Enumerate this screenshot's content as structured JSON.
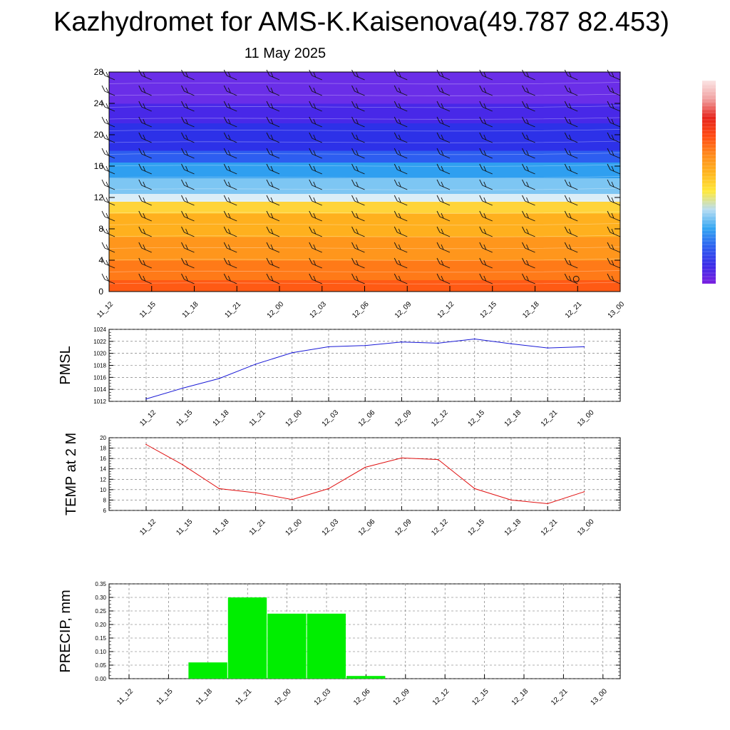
{
  "title": "Kazhydromet for AMS-K.Kaisenova(49.787 82.453)",
  "subtitle": "11 May 2025",
  "time_labels": [
    "11_12",
    "11_15",
    "11_18",
    "11_21",
    "12_00",
    "12_03",
    "12_06",
    "12_09",
    "12_12",
    "12_15",
    "12_18",
    "12_21",
    "13_00"
  ],
  "colorbar": {
    "colors": [
      "#7a1fe0",
      "#3a2ce8",
      "#2d60f0",
      "#33a6f2",
      "#b6dcf2",
      "#ffe93a",
      "#ffb51e",
      "#ff8a1c",
      "#ff4a12",
      "#e6241c",
      "#f0a0a0",
      "#fbe4e4"
    ]
  },
  "chart_data": [
    {
      "type": "heatmap",
      "title": "",
      "xlabel": "",
      "ylabel": "",
      "ylim": [
        0,
        28
      ],
      "yticks": [
        0,
        4,
        8,
        12,
        16,
        20,
        24,
        28
      ],
      "categories": [
        "11_12",
        "11_15",
        "11_18",
        "11_21",
        "12_00",
        "12_03",
        "12_06",
        "12_09",
        "12_12",
        "12_15",
        "12_18",
        "12_21",
        "13_00"
      ],
      "color_bands": [
        {
          "y_from": 0,
          "y_to": 1.5,
          "color": "#ff5a14"
        },
        {
          "y_from": 1.5,
          "y_to": 4,
          "color": "#ff7a18"
        },
        {
          "y_from": 4,
          "y_to": 7,
          "color": "#ff961c"
        },
        {
          "y_from": 7,
          "y_to": 10,
          "color": "#ffb01e"
        },
        {
          "y_from": 10,
          "y_to": 11.5,
          "color": "#ffd43a"
        },
        {
          "y_from": 11.5,
          "y_to": 12.5,
          "color": "#dbeef7"
        },
        {
          "y_from": 12.5,
          "y_to": 14.5,
          "color": "#7dc6f3"
        },
        {
          "y_from": 14.5,
          "y_to": 16.5,
          "color": "#2f9ff0"
        },
        {
          "y_from": 16.5,
          "y_to": 18,
          "color": "#2d5df0"
        },
        {
          "y_from": 18,
          "y_to": 21.5,
          "color": "#2d31e8"
        },
        {
          "y_from": 21.5,
          "y_to": 24,
          "color": "#4828e8"
        },
        {
          "y_from": 24,
          "y_to": 28,
          "color": "#6a2ee8"
        }
      ],
      "grid": false
    },
    {
      "type": "line",
      "title": "",
      "xlabel": "",
      "ylabel": "PMSL",
      "categories": [
        "11_12",
        "11_15",
        "11_18",
        "11_21",
        "12_00",
        "12_03",
        "12_06",
        "12_09",
        "12_12",
        "12_15",
        "12_18",
        "12_21",
        "13_00"
      ],
      "series": [
        {
          "values": [
            1012.4,
            1014.2,
            1015.8,
            1018.2,
            1020.1,
            1021.1,
            1021.3,
            1021.9,
            1021.7,
            1022.4,
            1021.6,
            1020.9,
            1021.1
          ],
          "color": "#1a1ad6"
        }
      ],
      "ylim": [
        1012,
        1024
      ],
      "yticks": [
        1012,
        1014,
        1016,
        1018,
        1020,
        1022,
        1024
      ],
      "grid": true
    },
    {
      "type": "line",
      "title": "",
      "xlabel": "",
      "ylabel": "TEMP at 2 M",
      "categories": [
        "11_12",
        "11_15",
        "11_18",
        "11_21",
        "12_00",
        "12_03",
        "12_06",
        "12_09",
        "12_12",
        "12_15",
        "12_18",
        "12_21",
        "13_00"
      ],
      "series": [
        {
          "values": [
            18.7,
            14.8,
            10.2,
            9.4,
            8.1,
            10.2,
            14.3,
            16.1,
            15.8,
            10.2,
            8.0,
            7.3,
            9.6
          ],
          "color": "#e01010"
        }
      ],
      "ylim": [
        6,
        20
      ],
      "yticks": [
        6,
        8,
        10,
        12,
        14,
        16,
        18,
        20
      ],
      "grid": true
    },
    {
      "type": "bar",
      "title": "",
      "xlabel": "",
      "ylabel": "PRECIP, mm",
      "categories": [
        "11_12",
        "11_15",
        "11_18",
        "11_21",
        "12_00",
        "12_03",
        "12_06",
        "12_09",
        "12_12",
        "12_15",
        "12_18",
        "12_21",
        "13_00"
      ],
      "values": [
        0,
        0,
        0.06,
        0.3,
        0.24,
        0.24,
        0.01,
        0,
        0,
        0,
        0,
        0,
        0
      ],
      "ylim": [
        0,
        0.35
      ],
      "yticks": [
        "0.00",
        "0.05",
        "0.10",
        "0.15",
        "0.20",
        "0.25",
        "0.30",
        "0.35"
      ],
      "bar_color": "#00ee00",
      "grid": true
    }
  ]
}
